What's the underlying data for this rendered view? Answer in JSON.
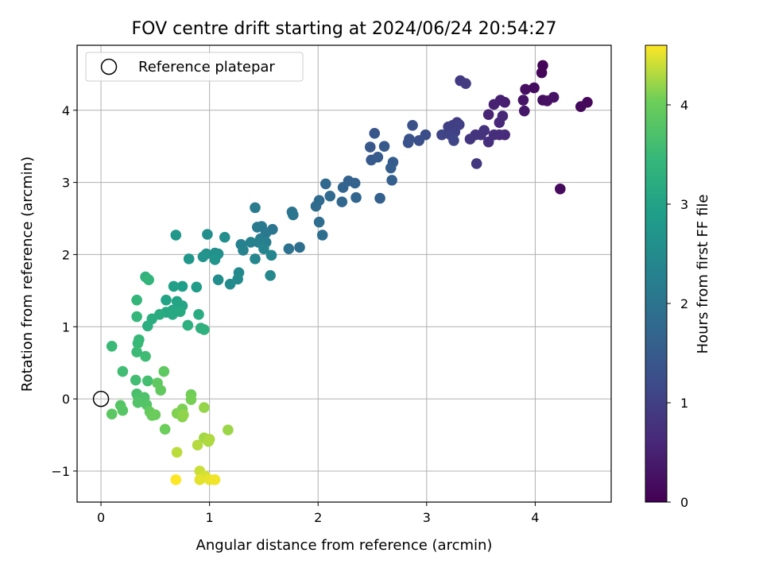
{
  "chart_data": {
    "type": "scatter",
    "title": "FOV centre drift starting at 2024/06/24 20:54:27",
    "xlabel": "Angular distance from reference (arcmin)",
    "ylabel": "Rotation from reference (arcmin)",
    "xlim": [
      -0.22,
      4.7
    ],
    "ylim": [
      -1.43,
      4.9
    ],
    "xticks": [
      0,
      1,
      2,
      3,
      4
    ],
    "yticks": [
      -1,
      0,
      1,
      2,
      3,
      4
    ],
    "grid": true,
    "legend": {
      "placement": "top-left",
      "entries": [
        "Reference platepar"
      ]
    },
    "reference_point": {
      "x": 0,
      "y": 0,
      "label": "Reference platepar"
    },
    "colorbar": {
      "label": "Hours from first FF file",
      "colormap": "viridis",
      "range": [
        0,
        4.6
      ],
      "ticks": [
        0,
        1,
        2,
        3,
        4
      ]
    },
    "points": [
      {
        "x": 4.07,
        "y": 4.62,
        "c": 0.05
      },
      {
        "x": 4.06,
        "y": 4.52,
        "c": 0.08
      },
      {
        "x": 4.48,
        "y": 4.11,
        "c": 0.1
      },
      {
        "x": 4.42,
        "y": 4.05,
        "c": 0.12
      },
      {
        "x": 4.23,
        "y": 2.91,
        "c": 0.15
      },
      {
        "x": 3.99,
        "y": 4.31,
        "c": 0.18
      },
      {
        "x": 3.91,
        "y": 4.29,
        "c": 0.2
      },
      {
        "x": 4.07,
        "y": 4.14,
        "c": 0.22
      },
      {
        "x": 4.11,
        "y": 4.13,
        "c": 0.25
      },
      {
        "x": 4.17,
        "y": 4.18,
        "c": 0.28
      },
      {
        "x": 3.89,
        "y": 4.14,
        "c": 0.3
      },
      {
        "x": 3.9,
        "y": 3.99,
        "c": 0.33
      },
      {
        "x": 3.72,
        "y": 4.11,
        "c": 0.45
      },
      {
        "x": 3.68,
        "y": 4.14,
        "c": 0.48
      },
      {
        "x": 3.62,
        "y": 4.08,
        "c": 0.5
      },
      {
        "x": 3.57,
        "y": 3.94,
        "c": 0.55
      },
      {
        "x": 3.7,
        "y": 3.92,
        "c": 0.6
      },
      {
        "x": 3.67,
        "y": 3.83,
        "c": 0.62
      },
      {
        "x": 3.72,
        "y": 3.66,
        "c": 0.65
      },
      {
        "x": 3.67,
        "y": 3.66,
        "c": 0.68
      },
      {
        "x": 3.62,
        "y": 3.66,
        "c": 0.7
      },
      {
        "x": 3.57,
        "y": 3.56,
        "c": 0.72
      },
      {
        "x": 3.53,
        "y": 3.72,
        "c": 0.75
      },
      {
        "x": 3.5,
        "y": 3.66,
        "c": 0.78
      },
      {
        "x": 3.45,
        "y": 3.66,
        "c": 0.8
      },
      {
        "x": 3.4,
        "y": 3.6,
        "c": 0.82
      },
      {
        "x": 3.46,
        "y": 3.26,
        "c": 0.85
      },
      {
        "x": 3.31,
        "y": 4.41,
        "c": 0.88
      },
      {
        "x": 3.36,
        "y": 4.37,
        "c": 0.9
      },
      {
        "x": 3.28,
        "y": 3.83,
        "c": 0.92
      },
      {
        "x": 3.24,
        "y": 3.79,
        "c": 0.95
      },
      {
        "x": 3.2,
        "y": 3.77,
        "c": 0.98
      },
      {
        "x": 3.3,
        "y": 3.8,
        "c": 1.0
      },
      {
        "x": 3.26,
        "y": 3.7,
        "c": 1.02
      },
      {
        "x": 3.22,
        "y": 3.66,
        "c": 1.05
      },
      {
        "x": 3.14,
        "y": 3.66,
        "c": 1.08
      },
      {
        "x": 3.25,
        "y": 3.58,
        "c": 1.1
      },
      {
        "x": 2.99,
        "y": 3.66,
        "c": 1.25
      },
      {
        "x": 2.93,
        "y": 3.58,
        "c": 1.28
      },
      {
        "x": 2.87,
        "y": 3.79,
        "c": 1.3
      },
      {
        "x": 2.83,
        "y": 3.55,
        "c": 1.33
      },
      {
        "x": 2.84,
        "y": 3.6,
        "c": 1.35
      },
      {
        "x": 2.52,
        "y": 3.68,
        "c": 1.4
      },
      {
        "x": 2.48,
        "y": 3.49,
        "c": 1.42
      },
      {
        "x": 2.61,
        "y": 3.5,
        "c": 1.45
      },
      {
        "x": 2.49,
        "y": 3.31,
        "c": 1.48
      },
      {
        "x": 2.55,
        "y": 3.35,
        "c": 1.5
      },
      {
        "x": 2.69,
        "y": 3.28,
        "c": 1.52
      },
      {
        "x": 2.67,
        "y": 3.2,
        "c": 1.55
      },
      {
        "x": 2.68,
        "y": 3.03,
        "c": 1.58
      },
      {
        "x": 2.57,
        "y": 2.78,
        "c": 1.6
      },
      {
        "x": 2.28,
        "y": 3.02,
        "c": 1.62
      },
      {
        "x": 2.34,
        "y": 2.99,
        "c": 1.65
      },
      {
        "x": 2.23,
        "y": 2.93,
        "c": 1.68
      },
      {
        "x": 2.35,
        "y": 2.79,
        "c": 1.7
      },
      {
        "x": 2.22,
        "y": 2.73,
        "c": 1.72
      },
      {
        "x": 2.07,
        "y": 2.98,
        "c": 1.75
      },
      {
        "x": 2.11,
        "y": 2.81,
        "c": 1.78
      },
      {
        "x": 2.01,
        "y": 2.75,
        "c": 1.8
      },
      {
        "x": 1.98,
        "y": 2.67,
        "c": 1.82
      },
      {
        "x": 2.01,
        "y": 2.45,
        "c": 1.85
      },
      {
        "x": 2.04,
        "y": 2.27,
        "c": 1.88
      },
      {
        "x": 1.83,
        "y": 2.1,
        "c": 1.9
      },
      {
        "x": 1.73,
        "y": 2.08,
        "c": 1.95
      },
      {
        "x": 1.76,
        "y": 2.59,
        "c": 2.0
      },
      {
        "x": 1.77,
        "y": 2.55,
        "c": 2.02
      },
      {
        "x": 1.58,
        "y": 2.35,
        "c": 2.05
      },
      {
        "x": 1.52,
        "y": 2.3,
        "c": 2.08
      },
      {
        "x": 1.48,
        "y": 2.39,
        "c": 2.1
      },
      {
        "x": 1.44,
        "y": 2.38,
        "c": 2.12
      },
      {
        "x": 1.42,
        "y": 2.65,
        "c": 2.15
      },
      {
        "x": 1.47,
        "y": 2.22,
        "c": 2.18
      },
      {
        "x": 1.49,
        "y": 2.14,
        "c": 2.2
      },
      {
        "x": 1.52,
        "y": 2.17,
        "c": 2.22
      },
      {
        "x": 1.45,
        "y": 2.17,
        "c": 2.25
      },
      {
        "x": 1.38,
        "y": 2.17,
        "c": 2.28
      },
      {
        "x": 1.29,
        "y": 2.14,
        "c": 2.3
      },
      {
        "x": 1.31,
        "y": 2.06,
        "c": 2.32
      },
      {
        "x": 1.5,
        "y": 2.08,
        "c": 2.35
      },
      {
        "x": 1.57,
        "y": 1.99,
        "c": 2.38
      },
      {
        "x": 1.42,
        "y": 1.94,
        "c": 2.4
      },
      {
        "x": 1.56,
        "y": 1.71,
        "c": 2.42
      },
      {
        "x": 1.27,
        "y": 1.75,
        "c": 2.45
      },
      {
        "x": 1.26,
        "y": 1.66,
        "c": 2.48
      },
      {
        "x": 1.19,
        "y": 1.59,
        "c": 2.5
      },
      {
        "x": 1.08,
        "y": 1.65,
        "c": 2.52
      },
      {
        "x": 1.14,
        "y": 2.24,
        "c": 2.55
      },
      {
        "x": 0.98,
        "y": 2.28,
        "c": 2.58
      },
      {
        "x": 1.08,
        "y": 2.01,
        "c": 2.6
      },
      {
        "x": 1.05,
        "y": 2.02,
        "c": 2.62
      },
      {
        "x": 0.97,
        "y": 2.01,
        "c": 2.65
      },
      {
        "x": 0.94,
        "y": 1.97,
        "c": 2.68
      },
      {
        "x": 1.05,
        "y": 1.93,
        "c": 2.7
      },
      {
        "x": 0.81,
        "y": 1.94,
        "c": 2.72
      },
      {
        "x": 0.69,
        "y": 2.27,
        "c": 2.75
      },
      {
        "x": 0.88,
        "y": 1.55,
        "c": 2.85
      },
      {
        "x": 0.75,
        "y": 1.56,
        "c": 2.9
      },
      {
        "x": 0.67,
        "y": 1.56,
        "c": 2.95
      },
      {
        "x": 0.6,
        "y": 1.37,
        "c": 3.0
      },
      {
        "x": 0.7,
        "y": 1.35,
        "c": 3.02
      },
      {
        "x": 0.75,
        "y": 1.29,
        "c": 3.05
      },
      {
        "x": 0.66,
        "y": 1.23,
        "c": 3.08
      },
      {
        "x": 0.6,
        "y": 1.2,
        "c": 3.1
      },
      {
        "x": 0.66,
        "y": 1.17,
        "c": 3.12
      },
      {
        "x": 0.73,
        "y": 1.21,
        "c": 3.15
      },
      {
        "x": 0.9,
        "y": 1.17,
        "c": 3.18
      },
      {
        "x": 0.54,
        "y": 1.17,
        "c": 3.2
      },
      {
        "x": 0.47,
        "y": 1.11,
        "c": 3.22
      },
      {
        "x": 0.43,
        "y": 1.01,
        "c": 3.25
      },
      {
        "x": 0.8,
        "y": 1.02,
        "c": 3.28
      },
      {
        "x": 0.92,
        "y": 0.98,
        "c": 3.3
      },
      {
        "x": 0.95,
        "y": 0.96,
        "c": 3.32
      },
      {
        "x": 0.41,
        "y": 1.69,
        "c": 3.35
      },
      {
        "x": 0.44,
        "y": 1.65,
        "c": 3.38
      },
      {
        "x": 0.33,
        "y": 1.37,
        "c": 3.4
      },
      {
        "x": 0.33,
        "y": 1.14,
        "c": 3.42
      },
      {
        "x": 0.35,
        "y": 0.82,
        "c": 3.45
      },
      {
        "x": 0.34,
        "y": 0.77,
        "c": 3.48
      },
      {
        "x": 0.1,
        "y": 0.73,
        "c": 3.5
      },
      {
        "x": 0.33,
        "y": 0.65,
        "c": 3.52
      },
      {
        "x": 0.41,
        "y": 0.59,
        "c": 3.55
      },
      {
        "x": 0.2,
        "y": 0.38,
        "c": 3.58
      },
      {
        "x": 0.32,
        "y": 0.26,
        "c": 3.6
      },
      {
        "x": 0.43,
        "y": 0.25,
        "c": 3.62
      },
      {
        "x": 0.33,
        "y": 0.07,
        "c": 3.65
      },
      {
        "x": 0.34,
        "y": 0.04,
        "c": 3.68
      },
      {
        "x": 0.35,
        "y": 0.0,
        "c": 3.7
      },
      {
        "x": 0.4,
        "y": 0.02,
        "c": 3.72
      },
      {
        "x": 0.34,
        "y": -0.05,
        "c": 3.75
      },
      {
        "x": 0.42,
        "y": -0.08,
        "c": 3.78
      },
      {
        "x": 0.18,
        "y": -0.09,
        "c": 3.8
      },
      {
        "x": 0.2,
        "y": -0.16,
        "c": 3.82
      },
      {
        "x": 0.1,
        "y": -0.21,
        "c": 3.85
      },
      {
        "x": 0.58,
        "y": 0.38,
        "c": 3.88
      },
      {
        "x": 0.52,
        "y": 0.22,
        "c": 3.9
      },
      {
        "x": 0.55,
        "y": 0.12,
        "c": 3.92
      },
      {
        "x": 0.45,
        "y": -0.18,
        "c": 3.95
      },
      {
        "x": 0.47,
        "y": -0.23,
        "c": 3.98
      },
      {
        "x": 0.5,
        "y": -0.22,
        "c": 4.0
      },
      {
        "x": 0.59,
        "y": -0.42,
        "c": 4.02
      },
      {
        "x": 0.83,
        "y": 0.06,
        "c": 4.05
      },
      {
        "x": 0.83,
        "y": -0.01,
        "c": 4.08
      },
      {
        "x": 0.75,
        "y": -0.14,
        "c": 4.1
      },
      {
        "x": 0.7,
        "y": -0.2,
        "c": 4.12
      },
      {
        "x": 0.75,
        "y": -0.25,
        "c": 4.15
      },
      {
        "x": 0.76,
        "y": -0.22,
        "c": 4.18
      },
      {
        "x": 0.95,
        "y": -0.12,
        "c": 4.2
      },
      {
        "x": 1.17,
        "y": -0.43,
        "c": 4.22
      },
      {
        "x": 0.95,
        "y": -0.54,
        "c": 4.25
      },
      {
        "x": 0.99,
        "y": -0.59,
        "c": 4.28
      },
      {
        "x": 1.0,
        "y": -0.56,
        "c": 4.3
      },
      {
        "x": 0.89,
        "y": -0.64,
        "c": 4.32
      },
      {
        "x": 0.7,
        "y": -0.74,
        "c": 4.35
      },
      {
        "x": 0.91,
        "y": -1.0,
        "c": 4.4
      },
      {
        "x": 0.96,
        "y": -1.07,
        "c": 4.45
      },
      {
        "x": 0.91,
        "y": -1.12,
        "c": 4.5
      },
      {
        "x": 1.0,
        "y": -1.12,
        "c": 4.52
      },
      {
        "x": 1.05,
        "y": -1.12,
        "c": 4.55
      },
      {
        "x": 0.69,
        "y": -1.12,
        "c": 4.6
      }
    ]
  }
}
